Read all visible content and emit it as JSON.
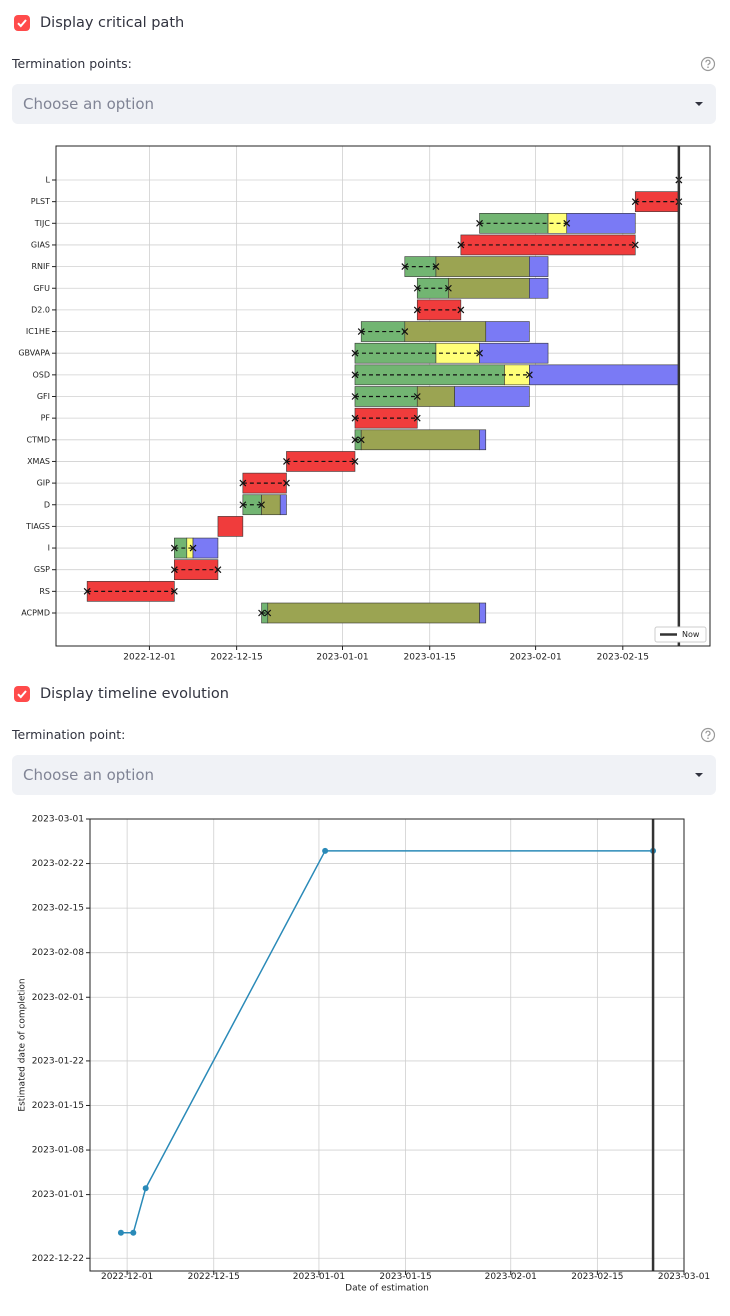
{
  "controls": {
    "critical_path_checkbox": "Display critical path",
    "termination_points_label": "Termination points:",
    "termination_points_placeholder": "Choose an option",
    "timeline_checkbox": "Display timeline evolution",
    "termination_point_label": "Termination point:",
    "termination_point_placeholder": "Choose an option"
  },
  "chart_data": [
    {
      "type": "gantt",
      "xlim": [
        "2022-11-16",
        "2023-03-01"
      ],
      "xticks": [
        "2022-12-01",
        "2022-12-15",
        "2023-01-01",
        "2023-01-15",
        "2023-02-01",
        "2023-02-15"
      ],
      "grid": true,
      "now": "2023-02-24",
      "now_label": "Now",
      "legend": "lower right",
      "tasks": [
        {
          "name": "L",
          "bars": [],
          "path": [
            "2023-02-24",
            "2023-02-24"
          ]
        },
        {
          "name": "PLST",
          "bars": [
            {
              "start": "2023-02-17",
              "end": "2023-02-24",
              "color": "#f03c3c"
            }
          ],
          "path": [
            "2023-02-17",
            "2023-02-24"
          ]
        },
        {
          "name": "TIJC",
          "bars": [
            {
              "start": "2023-01-23",
              "end": "2023-02-03",
              "color": "#72b572"
            },
            {
              "start": "2023-02-03",
              "end": "2023-02-06",
              "color": "#ffff78"
            },
            {
              "start": "2023-02-06",
              "end": "2023-02-17",
              "color": "#7a7af5"
            }
          ],
          "path": [
            "2023-01-23",
            "2023-02-06"
          ]
        },
        {
          "name": "GIAS",
          "bars": [
            {
              "start": "2023-01-20",
              "end": "2023-02-17",
              "color": "#f03c3c"
            }
          ],
          "path": [
            "2023-01-20",
            "2023-02-17"
          ]
        },
        {
          "name": "RNIF",
          "bars": [
            {
              "start": "2023-01-11",
              "end": "2023-01-16",
              "color": "#72b572"
            },
            {
              "start": "2023-01-16",
              "end": "2023-01-31",
              "color": "#9ba452"
            },
            {
              "start": "2023-01-31",
              "end": "2023-02-03",
              "color": "#7a7af5"
            }
          ],
          "path": [
            "2023-01-11",
            "2023-01-16"
          ]
        },
        {
          "name": "GFU",
          "bars": [
            {
              "start": "2023-01-13",
              "end": "2023-01-18",
              "color": "#72b572"
            },
            {
              "start": "2023-01-18",
              "end": "2023-01-31",
              "color": "#9ba452"
            },
            {
              "start": "2023-01-31",
              "end": "2023-02-03",
              "color": "#7a7af5"
            }
          ],
          "path": [
            "2023-01-13",
            "2023-01-18"
          ]
        },
        {
          "name": "D2.0",
          "bars": [
            {
              "start": "2023-01-13",
              "end": "2023-01-20",
              "color": "#f03c3c"
            }
          ],
          "path": [
            "2023-01-13",
            "2023-01-20"
          ]
        },
        {
          "name": "IC1HE",
          "bars": [
            {
              "start": "2023-01-04",
              "end": "2023-01-11",
              "color": "#72b572"
            },
            {
              "start": "2023-01-11",
              "end": "2023-01-24",
              "color": "#9ba452"
            },
            {
              "start": "2023-01-24",
              "end": "2023-01-31",
              "color": "#7a7af5"
            }
          ],
          "path": [
            "2023-01-04",
            "2023-01-11"
          ]
        },
        {
          "name": "GBVAPA",
          "bars": [
            {
              "start": "2023-01-03",
              "end": "2023-01-16",
              "color": "#72b572"
            },
            {
              "start": "2023-01-16",
              "end": "2023-01-23",
              "color": "#ffff78"
            },
            {
              "start": "2023-01-23",
              "end": "2023-02-03",
              "color": "#7a7af5"
            }
          ],
          "path": [
            "2023-01-03",
            "2023-01-23"
          ]
        },
        {
          "name": "OSD",
          "bars": [
            {
              "start": "2023-01-03",
              "end": "2023-01-27",
              "color": "#72b572"
            },
            {
              "start": "2023-01-27",
              "end": "2023-01-31",
              "color": "#ffff78"
            },
            {
              "start": "2023-01-31",
              "end": "2023-02-24",
              "color": "#7a7af5"
            }
          ],
          "path": [
            "2023-01-03",
            "2023-01-31"
          ]
        },
        {
          "name": "GFI",
          "bars": [
            {
              "start": "2023-01-03",
              "end": "2023-01-13",
              "color": "#72b572"
            },
            {
              "start": "2023-01-13",
              "end": "2023-01-19",
              "color": "#9ba452"
            },
            {
              "start": "2023-01-19",
              "end": "2023-01-31",
              "color": "#7a7af5"
            }
          ],
          "path": [
            "2023-01-03",
            "2023-01-13"
          ]
        },
        {
          "name": "PF",
          "bars": [
            {
              "start": "2023-01-03",
              "end": "2023-01-13",
              "color": "#f03c3c"
            }
          ],
          "path": [
            "2023-01-03",
            "2023-01-13"
          ]
        },
        {
          "name": "CTMD",
          "bars": [
            {
              "start": "2023-01-03",
              "end": "2023-01-04",
              "color": "#72b572"
            },
            {
              "start": "2023-01-04",
              "end": "2023-01-23",
              "color": "#9ba452"
            },
            {
              "start": "2023-01-23",
              "end": "2023-01-24",
              "color": "#7a7af5"
            }
          ],
          "path": [
            "2023-01-03",
            "2023-01-04"
          ]
        },
        {
          "name": "XMAS",
          "bars": [
            {
              "start": "2022-12-23",
              "end": "2023-01-03",
              "color": "#f03c3c"
            }
          ],
          "path": [
            "2022-12-23",
            "2023-01-03"
          ]
        },
        {
          "name": "GIP",
          "bars": [
            {
              "start": "2022-12-16",
              "end": "2022-12-23",
              "color": "#f03c3c"
            }
          ],
          "path": [
            "2022-12-16",
            "2022-12-23"
          ]
        },
        {
          "name": "D",
          "bars": [
            {
              "start": "2022-12-16",
              "end": "2022-12-19",
              "color": "#72b572"
            },
            {
              "start": "2022-12-19",
              "end": "2022-12-22",
              "color": "#9ba452"
            },
            {
              "start": "2022-12-22",
              "end": "2022-12-23",
              "color": "#7a7af5"
            }
          ],
          "path": [
            "2022-12-16",
            "2022-12-19"
          ]
        },
        {
          "name": "TIAGS",
          "bars": [
            {
              "start": "2022-12-12",
              "end": "2022-12-16",
              "color": "#f03c3c"
            }
          ]
        },
        {
          "name": "I",
          "bars": [
            {
              "start": "2022-12-05",
              "end": "2022-12-07",
              "color": "#72b572"
            },
            {
              "start": "2022-12-07",
              "end": "2022-12-08",
              "color": "#ffff78"
            },
            {
              "start": "2022-12-08",
              "end": "2022-12-12",
              "color": "#7a7af5"
            }
          ],
          "path": [
            "2022-12-05",
            "2022-12-08"
          ]
        },
        {
          "name": "GSP",
          "bars": [
            {
              "start": "2022-12-05",
              "end": "2022-12-12",
              "color": "#f03c3c"
            }
          ],
          "path": [
            "2022-12-05",
            "2022-12-12"
          ]
        },
        {
          "name": "RS",
          "bars": [
            {
              "start": "2022-11-21",
              "end": "2022-12-05",
              "color": "#f03c3c"
            }
          ],
          "path": [
            "2022-11-21",
            "2022-12-05"
          ]
        },
        {
          "name": "ACPMD",
          "bars": [
            {
              "start": "2022-12-19",
              "end": "2022-12-20",
              "color": "#72b572"
            },
            {
              "start": "2022-12-20",
              "end": "2023-01-23",
              "color": "#9ba452"
            },
            {
              "start": "2023-01-23",
              "end": "2023-01-24",
              "color": "#7a7af5"
            }
          ],
          "path": [
            "2022-12-19",
            "2022-12-20"
          ]
        }
      ]
    },
    {
      "type": "line",
      "x": [
        "2022-11-30",
        "2022-12-02",
        "2022-12-04",
        "2023-01-02",
        "2023-02-24"
      ],
      "values": [
        "2022-12-26",
        "2022-12-26",
        "2023-01-02",
        "2023-02-24",
        "2023-02-24"
      ],
      "color": "#2a8ab8",
      "xlim": [
        "2022-11-25",
        "2023-03-01"
      ],
      "ylim": [
        "2022-12-20",
        "2023-03-01"
      ],
      "xticks": [
        "2022-12-01",
        "2022-12-15",
        "2023-01-01",
        "2023-01-15",
        "2023-02-01",
        "2023-02-15",
        "2023-03-01"
      ],
      "yticks": [
        "2022-12-22",
        "2023-01-01",
        "2023-01-08",
        "2023-01-15",
        "2023-01-22",
        "2023-02-01",
        "2023-02-08",
        "2023-02-15",
        "2023-02-22",
        "2023-03-01"
      ],
      "xlabel": "Date of estimation",
      "ylabel": "Estimated date of completion",
      "now": "2023-02-24",
      "grid": true
    }
  ]
}
